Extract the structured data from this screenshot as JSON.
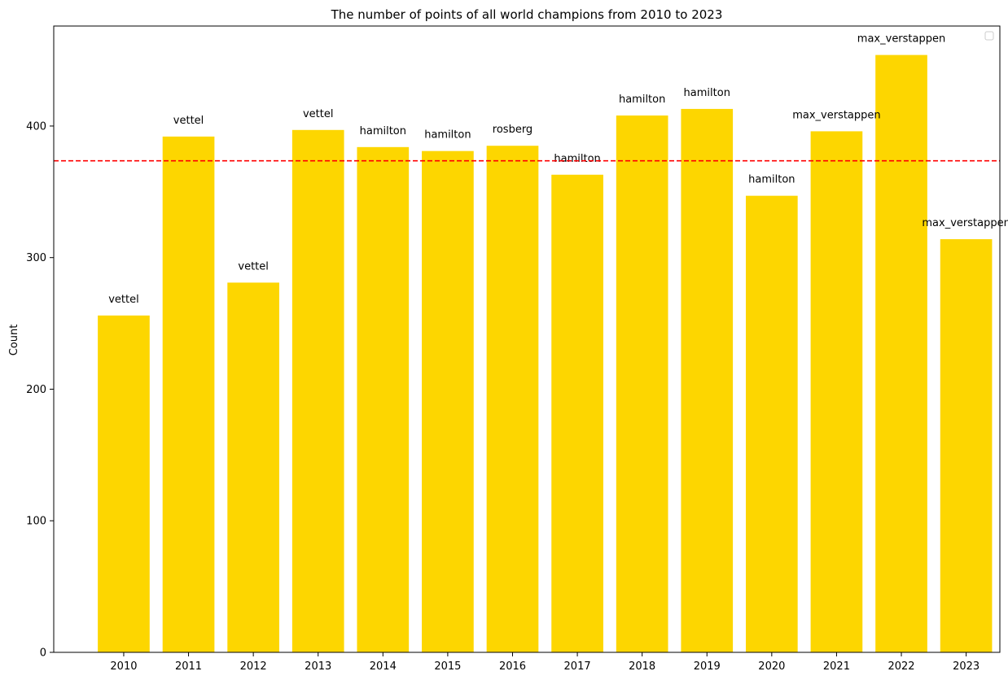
{
  "chart_data": {
    "type": "bar",
    "title": "The number of points of all world champions from 2010 to 2023",
    "xlabel": "",
    "ylabel": "Count",
    "categories": [
      "2010",
      "2011",
      "2012",
      "2013",
      "2014",
      "2015",
      "2016",
      "2017",
      "2018",
      "2019",
      "2020",
      "2021",
      "2022",
      "2023"
    ],
    "values": [
      256,
      392,
      281,
      397,
      384,
      381,
      385,
      363,
      408,
      413,
      347,
      396,
      454,
      314
    ],
    "bar_labels": [
      "vettel",
      "vettel",
      "vettel",
      "vettel",
      "hamilton",
      "hamilton",
      "rosberg",
      "hamilton",
      "hamilton",
      "hamilton",
      "hamilton",
      "max_verstappen",
      "max_verstappen",
      "max_verstappen"
    ],
    "ylim": [
      0,
      476
    ],
    "yticks": [
      0,
      100,
      200,
      300,
      400
    ],
    "reference_line": {
      "value": 373.6,
      "style": "dashed",
      "color": "#ff0000"
    },
    "bar_color": "#fdd600",
    "grid": false,
    "legend": {
      "position": "top-right",
      "entries": []
    }
  }
}
